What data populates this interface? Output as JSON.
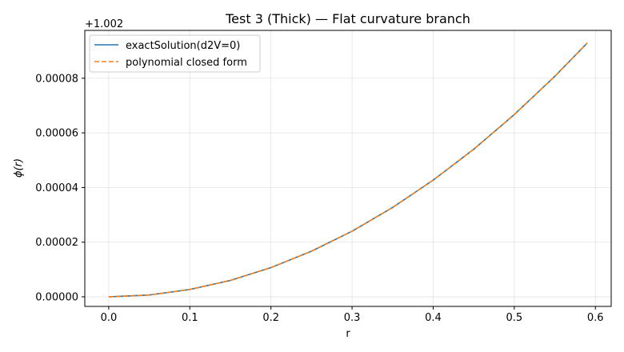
{
  "chart_data": {
    "type": "line",
    "title": "Test 3 (Thick) — Flat curvature branch",
    "xlabel": "r",
    "ylabel": "ϕ(r)",
    "xlim": [
      -0.0295,
      0.6195
    ],
    "ylim": [
      -3.5e-06,
      9.75e-05
    ],
    "y_offset_label": "+1.002",
    "y_offset": 1.002,
    "grid": true,
    "legend_position": "top-left",
    "x_ticks": [
      0.0,
      0.1,
      0.2,
      0.3,
      0.4,
      0.5,
      0.6
    ],
    "x_tick_labels": [
      "0.0",
      "0.1",
      "0.2",
      "0.3",
      "0.4",
      "0.5",
      "0.6"
    ],
    "y_ticks": [
      0.0,
      2e-05,
      4e-05,
      6e-05,
      8e-05
    ],
    "y_tick_labels": [
      "0.00000",
      "0.00002",
      "0.00004",
      "0.00006",
      "0.00008"
    ],
    "x": [
      0.0,
      0.05,
      0.1,
      0.15,
      0.2,
      0.25,
      0.3,
      0.35,
      0.4,
      0.45,
      0.5,
      0.55,
      0.59
    ],
    "series": [
      {
        "name": "exactSolution(d2V=0)",
        "color": "#1f77b4",
        "style": "solid",
        "values": [
          0.0,
          6.7e-07,
          2.7e-06,
          6e-06,
          1.07e-05,
          1.67e-05,
          2.4e-05,
          3.27e-05,
          4.27e-05,
          5.4e-05,
          6.67e-05,
          8.07e-05,
          9.29e-05
        ]
      },
      {
        "name": "polynomial closed form",
        "color": "#ff7f0e",
        "style": "dashed",
        "values": [
          0.0,
          6.7e-07,
          2.7e-06,
          6e-06,
          1.07e-05,
          1.67e-05,
          2.4e-05,
          3.27e-05,
          4.27e-05,
          5.4e-05,
          6.67e-05,
          8.07e-05,
          9.29e-05
        ]
      }
    ]
  }
}
